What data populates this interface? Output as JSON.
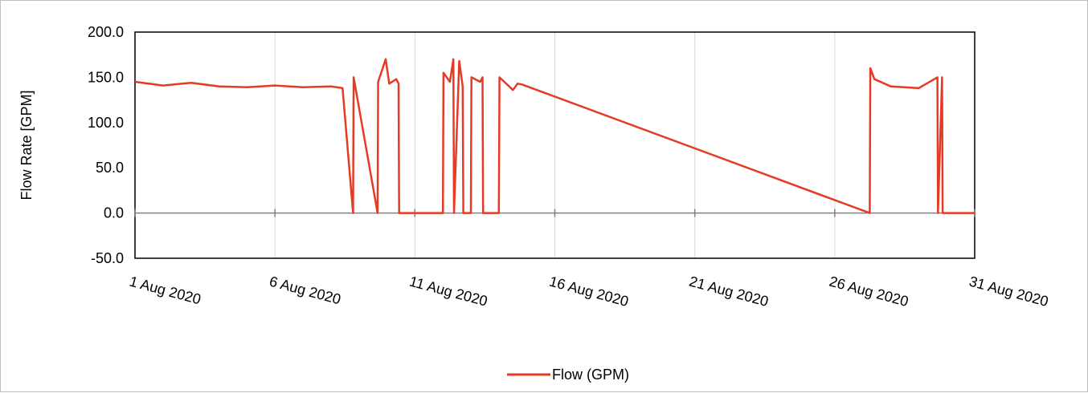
{
  "chart_data": {
    "type": "line",
    "title": "",
    "xlabel": "",
    "ylabel": "Flow Rate [GPM]",
    "ylim": [
      -50,
      200
    ],
    "yticks": [
      -50,
      0,
      50,
      100,
      150,
      200
    ],
    "ytick_labels": [
      "-50.0",
      "0.0",
      "50.0",
      "100.0",
      "150.0",
      "200.0"
    ],
    "xlim": [
      "2020-08-01",
      "2020-08-31"
    ],
    "xticks": [
      "2020-08-01",
      "2020-08-06",
      "2020-08-11",
      "2020-08-16",
      "2020-08-21",
      "2020-08-26",
      "2020-08-31"
    ],
    "xtick_labels": [
      "1 Aug 2020",
      "6 Aug 2020",
      "11 Aug 2020",
      "16 Aug 2020",
      "21 Aug 2020",
      "26 Aug 2020",
      "31 Aug 2020"
    ],
    "grid": "vertical",
    "legend": "bottom",
    "series": [
      {
        "name": "Flow (GPM)",
        "color": "#e53b25",
        "x": [
          "2020-08-01",
          "2020-08-02",
          "2020-08-03",
          "2020-08-04",
          "2020-08-05",
          "2020-08-06",
          "2020-08-07",
          "2020-08-08",
          "2020-08-08T10:00",
          "2020-08-08T19:00",
          "2020-08-08T19:30",
          "2020-08-09T16:00",
          "2020-08-09T16:30",
          "2020-08-09T23:00",
          "2020-08-10T02:00",
          "2020-08-10T08:00",
          "2020-08-10T10:00",
          "2020-08-10T10:30",
          "2020-08-11",
          "2020-08-12",
          "2020-08-12T00:30",
          "2020-08-12T06:00",
          "2020-08-12T09:00",
          "2020-08-12T09:30",
          "2020-08-12T14:00",
          "2020-08-12T17:00",
          "2020-08-12T17:30",
          "2020-08-13",
          "2020-08-13T00:30",
          "2020-08-13T08:00",
          "2020-08-13T10:00",
          "2020-08-13T10:30",
          "2020-08-14",
          "2020-08-14T00:30",
          "2020-08-14T12:00",
          "2020-08-14T16:00",
          "2020-08-14T20:00",
          "2020-08-27T06:00",
          "2020-08-27T06:30",
          "2020-08-27T10:00",
          "2020-08-28",
          "2020-08-29",
          "2020-08-29T16:00",
          "2020-08-29T16:30",
          "2020-08-29T20:00",
          "2020-08-29T20:30",
          "2020-08-30",
          "2020-08-31"
        ],
        "y": [
          145,
          141,
          144,
          140,
          139,
          141,
          139,
          140,
          138,
          0,
          150,
          0,
          145,
          170,
          143,
          148,
          143,
          0,
          0,
          0,
          155,
          145,
          170,
          0,
          168,
          140,
          0,
          0,
          150,
          145,
          150,
          0,
          0,
          150,
          136,
          143,
          142,
          0,
          160,
          148,
          140,
          138,
          150,
          0,
          150,
          0,
          0,
          0
        ]
      }
    ]
  }
}
